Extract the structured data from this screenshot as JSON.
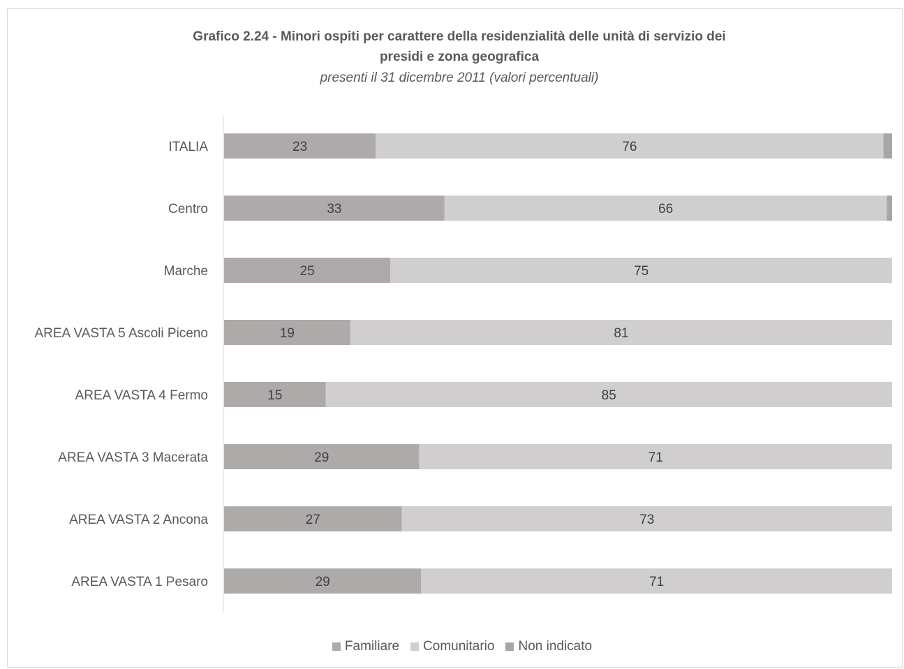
{
  "chart_data": {
    "type": "bar",
    "orientation": "horizontal",
    "stacked": true,
    "title": "Grafico 2.24 - Minori ospiti per carattere della residenzialità delle unità di servizio dei presidi e zona geografica",
    "title_line1": "Grafico 2.24 - Minori ospiti per carattere della residenzialità delle unità di servizio dei",
    "title_line2": "presidi e zona geografica",
    "subtitle": "presenti il 31 dicembre 2011 (valori percentuali)",
    "categories": [
      "ITALIA",
      "Centro",
      "Marche",
      "AREA VASTA 5 Ascoli Piceno",
      "AREA VASTA 4 Fermo",
      "AREA VASTA 3 Macerata",
      "AREA VASTA 2 Ancona",
      "AREA VASTA 1 Pesaro"
    ],
    "series": [
      {
        "name": "Familiare",
        "values": [
          22.7,
          33.0,
          24.9,
          18.9,
          15.2,
          29.2,
          26.6,
          29.5
        ],
        "labels": [
          "23",
          "33",
          "25",
          "19",
          "15",
          "29",
          "27",
          "29"
        ],
        "color": "#aeaaaa"
      },
      {
        "name": "Comunitario",
        "values": [
          76.0,
          66.2,
          75.1,
          81.1,
          84.8,
          70.8,
          73.4,
          70.5
        ],
        "labels": [
          "76",
          "66",
          "75",
          "81",
          "85",
          "71",
          "73",
          "71"
        ],
        "color": "#d0cece"
      },
      {
        "name": "Non indicato",
        "values": [
          1.3,
          0.8,
          0,
          0,
          0,
          0,
          0,
          0
        ],
        "labels": [
          "",
          "",
          "",
          "",
          "",
          "",
          "",
          ""
        ],
        "color": "#a6a6a6"
      }
    ],
    "xlim": [
      0,
      100
    ],
    "grid": false,
    "legend_position": "bottom"
  }
}
